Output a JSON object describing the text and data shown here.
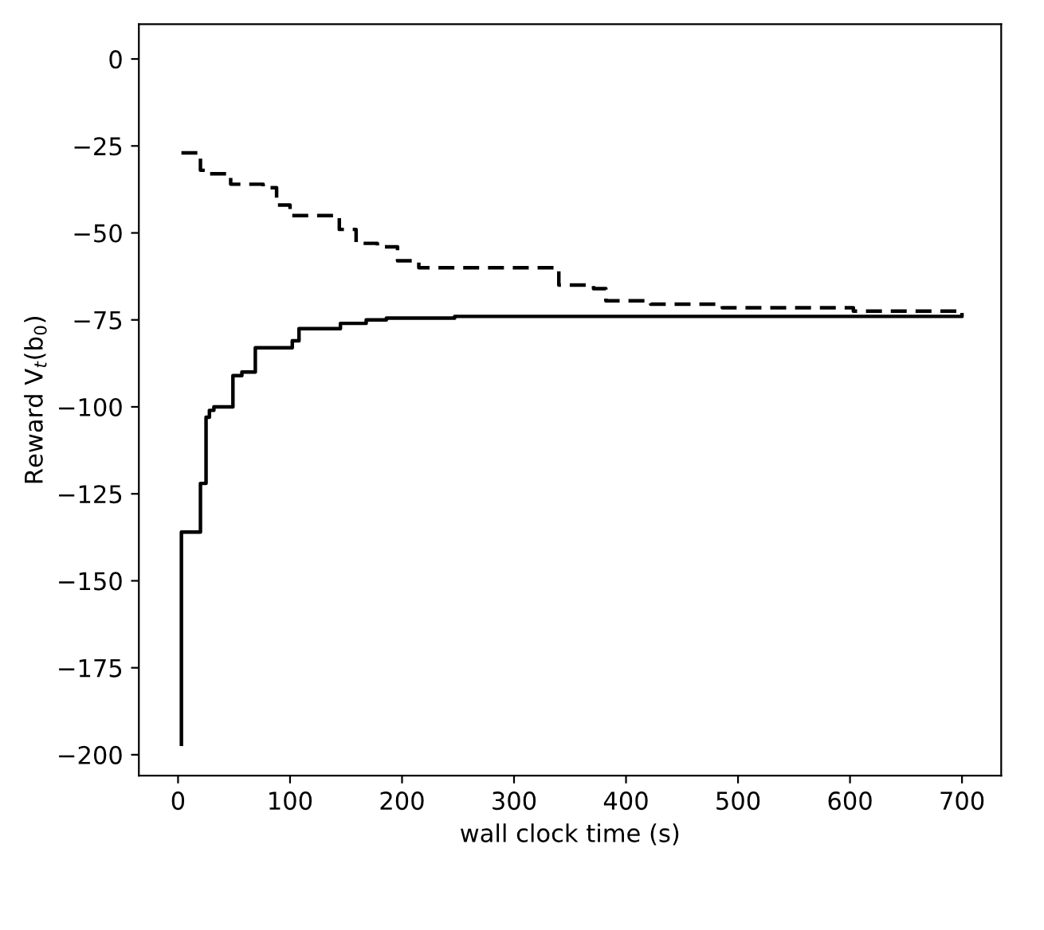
{
  "chart_data": {
    "type": "step",
    "xlabel": "wall clock time (s)",
    "ylabel": "Reward V$_{t}$(b$_{0}$)",
    "xlim": [
      -35,
      735
    ],
    "ylim": [
      -206,
      10
    ],
    "xticks": [
      0,
      100,
      200,
      300,
      400,
      500,
      600,
      700
    ],
    "yticks": [
      {
        "value": 0,
        "label": "0"
      },
      {
        "value": -25,
        "label": "−25"
      },
      {
        "value": -50,
        "label": "−50"
      },
      {
        "value": -75,
        "label": "−75"
      },
      {
        "value": -100,
        "label": "−100"
      },
      {
        "value": -125,
        "label": "−125"
      },
      {
        "value": -150,
        "label": "−150"
      },
      {
        "value": -175,
        "label": "−175"
      },
      {
        "value": -200,
        "label": "−200"
      }
    ],
    "grid": false,
    "legend": false,
    "series": [
      {
        "color": "#000000",
        "line_style": "solid",
        "x": [
          3,
          3,
          20,
          25,
          28,
          32,
          49,
          57,
          69,
          102,
          108,
          145,
          168,
          186,
          247,
          700
        ],
        "values": [
          -197,
          -136,
          -122,
          -103,
          -101,
          -100,
          -91,
          -90,
          -83,
          -81,
          -77.5,
          -76,
          -75,
          -74.5,
          -74,
          -73.5
        ]
      },
      {
        "color": "#000000",
        "line_style": "dashed",
        "x": [
          3,
          20,
          28,
          47,
          76,
          88,
          100,
          144,
          159,
          178,
          196,
          215,
          340,
          371,
          382,
          422,
          486,
          603,
          700
        ],
        "values": [
          -27,
          -32,
          -33,
          -36,
          -37,
          -42,
          -45,
          -49,
          -53,
          -54,
          -58,
          -60,
          -65,
          -66,
          -69.5,
          -70.5,
          -71.5,
          -72.5,
          -73
        ]
      }
    ]
  }
}
